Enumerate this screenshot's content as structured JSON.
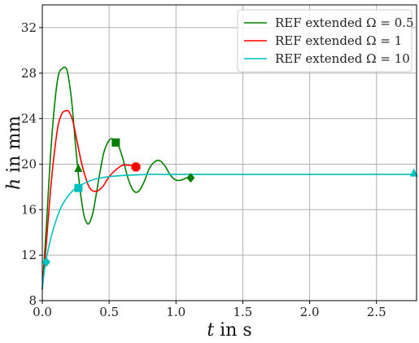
{
  "chart_data": {
    "type": "line",
    "xlabel": {
      "symbol": "t",
      "text": " in s"
    },
    "ylabel": {
      "symbol": "h",
      "text": " in mm"
    },
    "xlim": [
      0.0,
      2.8
    ],
    "ylim": [
      8,
      34
    ],
    "xticks": [
      0.0,
      0.5,
      1.0,
      1.5,
      2.0,
      2.5
    ],
    "xtick_labels": [
      "0.0",
      "0.5",
      "1.0",
      "1.5",
      "2.0",
      "2.5"
    ],
    "yticks": [
      8,
      12,
      16,
      20,
      24,
      28,
      32
    ],
    "ytick_labels": [
      "8",
      "12",
      "16",
      "20",
      "24",
      "28",
      "32"
    ],
    "grid": true,
    "legend_position": "top-right",
    "series": [
      {
        "name": "REF extended Ω = 0.5",
        "color": "#007f00",
        "x": [
          0.0,
          0.03,
          0.06,
          0.09,
          0.12,
          0.15,
          0.17,
          0.19,
          0.22,
          0.25,
          0.28,
          0.31,
          0.33,
          0.35,
          0.38,
          0.42,
          0.46,
          0.5,
          0.53,
          0.56,
          0.6,
          0.64,
          0.68,
          0.72,
          0.76,
          0.8,
          0.84,
          0.88,
          0.92,
          0.96,
          1.0,
          1.04,
          1.08,
          1.1
        ],
        "y": [
          9.0,
          14.5,
          20.5,
          25.0,
          27.8,
          28.4,
          28.5,
          28.0,
          25.5,
          21.5,
          18.0,
          15.6,
          14.9,
          14.8,
          15.8,
          18.5,
          21.0,
          22.1,
          22.2,
          21.9,
          20.6,
          18.8,
          17.7,
          17.6,
          18.4,
          19.6,
          20.2,
          20.3,
          19.8,
          19.0,
          18.6,
          18.6,
          18.8,
          18.8
        ]
      },
      {
        "name": "REF extended Ω = 1",
        "color": "#ff0000",
        "x": [
          0.0,
          0.03,
          0.06,
          0.09,
          0.12,
          0.15,
          0.18,
          0.2,
          0.23,
          0.26,
          0.3,
          0.35,
          0.4,
          0.45,
          0.5,
          0.55,
          0.6,
          0.65,
          0.7
        ],
        "y": [
          9.0,
          13.0,
          17.5,
          21.0,
          23.5,
          24.5,
          24.7,
          24.6,
          23.7,
          22.0,
          19.8,
          18.0,
          17.6,
          18.0,
          18.9,
          19.5,
          19.9,
          19.9,
          19.8
        ]
      },
      {
        "name": "REF extended Ω = 10",
        "color": "#00bfbf",
        "x": [
          0.0,
          0.02,
          0.05,
          0.08,
          0.11,
          0.14,
          0.17,
          0.2,
          0.24,
          0.28,
          0.33,
          0.4,
          0.5,
          0.6,
          0.7,
          0.8,
          0.9,
          1.0,
          1.2,
          1.5,
          2.0,
          2.5,
          2.78
        ],
        "y": [
          9.0,
          11.0,
          12.8,
          14.2,
          15.3,
          16.2,
          16.8,
          17.3,
          17.8,
          18.1,
          18.4,
          18.7,
          18.9,
          19.0,
          19.05,
          19.1,
          19.1,
          19.1,
          19.1,
          19.1,
          19.1,
          19.1,
          19.1
        ]
      }
    ],
    "markers": [
      {
        "series": 0,
        "shape": "diamond",
        "x": 0.03,
        "y": 11.4,
        "color": "#00bfbf"
      },
      {
        "series": 0,
        "shape": "triangle",
        "x": 0.27,
        "y": 19.6,
        "color": "#007f00"
      },
      {
        "series": 0,
        "shape": "square",
        "x": 0.55,
        "y": 21.9,
        "color": "#007f00"
      },
      {
        "series": 0,
        "shape": "diamond",
        "x": 1.11,
        "y": 18.8,
        "color": "#007f00"
      },
      {
        "series": 1,
        "shape": "octagon",
        "x": 0.7,
        "y": 19.75,
        "color": "#ff0000"
      },
      {
        "series": 2,
        "shape": "square",
        "x": 0.27,
        "y": 17.9,
        "color": "#00bfbf"
      },
      {
        "series": 2,
        "shape": "triangle",
        "x": 2.78,
        "y": 19.2,
        "color": "#00bfbf"
      }
    ]
  }
}
